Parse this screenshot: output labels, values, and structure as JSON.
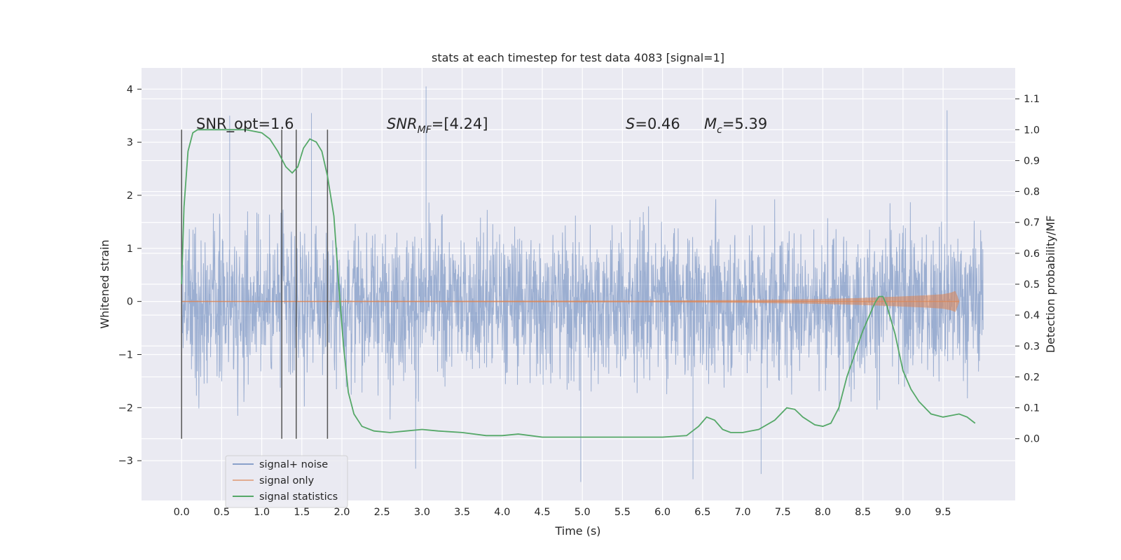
{
  "chart_data": {
    "type": "line",
    "title": "stats at each timestep for test data 4083 [signal=1]",
    "xlabel": "Time (s)",
    "ylabel_left": "Whitened strain",
    "ylabel_right": "Detection probability/MF",
    "xlim": [
      -0.5,
      10.4
    ],
    "ylim_left": [
      -3.75,
      4.4
    ],
    "ylim_right": [
      -0.2,
      1.2
    ],
    "x_ticks": [
      "0.0",
      "0.5",
      "1.0",
      "1.5",
      "2.0",
      "2.5",
      "3.0",
      "3.5",
      "4.0",
      "4.5",
      "5.0",
      "5.5",
      "6.0",
      "6.5",
      "7.0",
      "7.5",
      "8.0",
      "8.5",
      "9.0",
      "9.5"
    ],
    "y_ticks_left": [
      "−3",
      "−2",
      "−1",
      "0",
      "1",
      "2",
      "3",
      "4"
    ],
    "y_ticks_right": [
      "0.0",
      "0.1",
      "0.2",
      "0.3",
      "0.4",
      "0.5",
      "0.6",
      "0.7",
      "0.8",
      "0.9",
      "1.0",
      "1.1"
    ],
    "annotations": {
      "snr_opt": "SNR_opt=1.6",
      "snr_mf_label": "SNR",
      "snr_mf_sub": "MF",
      "snr_mf_value": "=[4.24]",
      "s_label": "S",
      "s_value": "=0.46",
      "mc_label": "M",
      "mc_sub": "c",
      "mc_value": "=5.39"
    },
    "vertical_lines_x": [
      0.0,
      1.25,
      1.43,
      1.82
    ],
    "series": [
      {
        "name": "signal+ noise",
        "axis": "left",
        "color": "#4c72b0",
        "t_range": [
          0.0,
          10.0
        ],
        "band_typical": [
          -1.5,
          1.5
        ],
        "extreme_peaks": [
          [
            0.6,
            3.5
          ],
          [
            1.62,
            3.55
          ],
          [
            3.05,
            4.05
          ],
          [
            9.55,
            3.6
          ],
          [
            4.98,
            -3.4
          ],
          [
            6.38,
            -3.35
          ],
          [
            7.23,
            -3.25
          ],
          [
            2.92,
            -3.15
          ]
        ]
      },
      {
        "name": "signal only",
        "axis": "left",
        "color": "#dd8452",
        "x": [
          0.0,
          6.0,
          7.0,
          8.0,
          8.5,
          9.0,
          9.3,
          9.5,
          9.6,
          9.65,
          9.67,
          9.7
        ],
        "amplitude": [
          0.0,
          0.01,
          0.02,
          0.04,
          0.06,
          0.09,
          0.11,
          0.13,
          0.16,
          0.19,
          0.12,
          0.0
        ]
      },
      {
        "name": "signal statistics",
        "axis": "right",
        "color": "#55a868",
        "x": [
          0.0,
          0.03,
          0.08,
          0.14,
          0.2,
          0.3,
          0.5,
          0.8,
          1.0,
          1.1,
          1.2,
          1.3,
          1.38,
          1.45,
          1.52,
          1.6,
          1.68,
          1.75,
          1.82,
          1.9,
          1.96,
          2.02,
          2.08,
          2.15,
          2.25,
          2.4,
          2.6,
          2.8,
          3.0,
          3.2,
          3.5,
          3.8,
          4.0,
          4.2,
          4.5,
          5.0,
          5.5,
          6.0,
          6.3,
          6.45,
          6.55,
          6.65,
          6.75,
          6.85,
          7.0,
          7.2,
          7.4,
          7.55,
          7.65,
          7.75,
          7.9,
          8.0,
          8.1,
          8.2,
          8.3,
          8.5,
          8.65,
          8.7,
          8.75,
          8.8,
          8.9,
          9.0,
          9.1,
          9.2,
          9.35,
          9.5,
          9.6,
          9.7,
          9.8,
          9.9
        ],
        "y": [
          0.5,
          0.75,
          0.93,
          0.99,
          1.0,
          1.0,
          1.0,
          1.0,
          0.99,
          0.97,
          0.93,
          0.88,
          0.86,
          0.88,
          0.94,
          0.97,
          0.96,
          0.93,
          0.85,
          0.72,
          0.5,
          0.3,
          0.15,
          0.08,
          0.04,
          0.025,
          0.02,
          0.025,
          0.03,
          0.025,
          0.02,
          0.01,
          0.01,
          0.015,
          0.005,
          0.005,
          0.005,
          0.005,
          0.01,
          0.04,
          0.07,
          0.06,
          0.03,
          0.02,
          0.02,
          0.03,
          0.06,
          0.1,
          0.095,
          0.07,
          0.045,
          0.04,
          0.05,
          0.1,
          0.2,
          0.35,
          0.44,
          0.46,
          0.46,
          0.43,
          0.34,
          0.22,
          0.16,
          0.12,
          0.08,
          0.07,
          0.075,
          0.08,
          0.07,
          0.05
        ]
      }
    ],
    "legend": {
      "placement": "lower-left",
      "entries": [
        "signal+ noise",
        "signal only",
        "signal statistics"
      ]
    },
    "grid": true,
    "background": "#eaeaf2"
  }
}
